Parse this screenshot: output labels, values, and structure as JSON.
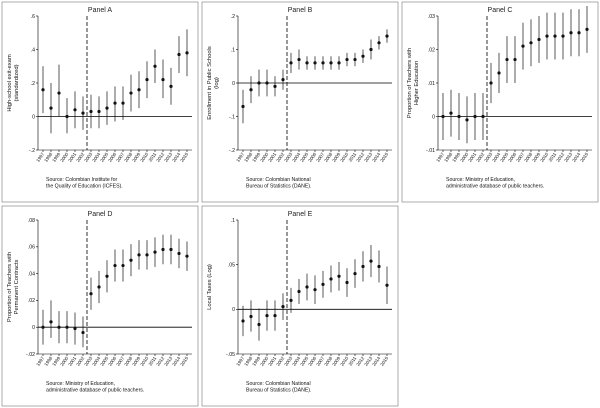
{
  "chart_data": [
    {
      "type": "scatter",
      "title": "Panel A",
      "ylabel": "High-school exit-exam (standardized)",
      "ylabel_lines": [
        "High-school exit-exam",
        "(standardized)"
      ],
      "ylim": [
        -0.2,
        0.6
      ],
      "yticks": [
        -0.2,
        0,
        0.2,
        0.4,
        0.6
      ],
      "ytick_labels": [
        "-.2",
        "0",
        ".2",
        ".4",
        ".6"
      ],
      "x": [
        1997,
        1998,
        1999,
        2000,
        2001,
        2002,
        2003,
        2004,
        2005,
        2006,
        2007,
        2008,
        2009,
        2010,
        2011,
        2012,
        2013,
        2014,
        2015
      ],
      "values": [
        0.16,
        0.05,
        0.14,
        0.0,
        0.04,
        0.02,
        0.03,
        0.03,
        0.05,
        0.08,
        0.08,
        0.14,
        0.16,
        0.22,
        0.3,
        0.22,
        0.18,
        0.37,
        0.38
      ],
      "ci_low": [
        0.02,
        -0.1,
        0.0,
        -0.1,
        -0.07,
        -0.08,
        -0.07,
        -0.07,
        -0.05,
        -0.03,
        -0.02,
        0.03,
        0.05,
        0.11,
        0.2,
        0.11,
        0.07,
        0.26,
        0.24
      ],
      "ci_high": [
        0.3,
        0.2,
        0.31,
        0.11,
        0.15,
        0.12,
        0.13,
        0.12,
        0.15,
        0.18,
        0.18,
        0.25,
        0.27,
        0.33,
        0.4,
        0.34,
        0.29,
        0.48,
        0.52
      ],
      "vline_x": 2002,
      "source_lines": [
        "Source: Colombian Institute for",
        "the Quality of Education (ICFES)."
      ]
    },
    {
      "type": "scatter",
      "title": "Panel B",
      "ylabel": "Enrollment in Public Schools (log)",
      "ylabel_lines": [
        "Enrollment in Public Schools",
        "(log)"
      ],
      "ylim": [
        -0.2,
        0.2
      ],
      "yticks": [
        -0.2,
        -0.1,
        0,
        0.1,
        0.2
      ],
      "ytick_labels": [
        "-.2",
        "-.1",
        "0",
        ".1",
        ".2"
      ],
      "x": [
        1997,
        1998,
        1999,
        2000,
        2001,
        2002,
        2003,
        2004,
        2005,
        2006,
        2007,
        2008,
        2009,
        2010,
        2011,
        2012,
        2013,
        2014,
        2015
      ],
      "values": [
        -0.07,
        -0.02,
        0.0,
        0.0,
        -0.01,
        0.01,
        0.06,
        0.07,
        0.06,
        0.06,
        0.06,
        0.06,
        0.06,
        0.07,
        0.07,
        0.08,
        0.1,
        0.12,
        0.14
      ],
      "ci_low": [
        -0.12,
        -0.06,
        -0.04,
        -0.04,
        -0.04,
        -0.02,
        0.03,
        0.04,
        0.04,
        0.04,
        0.04,
        0.04,
        0.04,
        0.05,
        0.05,
        0.06,
        0.07,
        0.1,
        0.12
      ],
      "ci_high": [
        -0.02,
        0.02,
        0.04,
        0.04,
        0.02,
        0.04,
        0.09,
        0.1,
        0.08,
        0.08,
        0.08,
        0.08,
        0.08,
        0.09,
        0.09,
        0.1,
        0.13,
        0.14,
        0.16
      ],
      "vline_x": 2002,
      "source_lines": [
        "Source: Colombian National",
        "Bureau of Statistics (DANE)."
      ]
    },
    {
      "type": "scatter",
      "title": "Panel C",
      "ylabel": "Proportion of Teachers with Higher Education",
      "ylabel_lines": [
        "Proportion of Teachers with",
        "Higher Education"
      ],
      "ylim": [
        -0.01,
        0.03
      ],
      "yticks": [
        -0.01,
        0,
        0.01,
        0.02,
        0.03
      ],
      "ytick_labels": [
        "-.01",
        "0",
        ".01",
        ".02",
        ".03"
      ],
      "x": [
        1997,
        1998,
        1999,
        2000,
        2001,
        2002,
        2003,
        2004,
        2005,
        2006,
        2007,
        2008,
        2009,
        2010,
        2011,
        2012,
        2013,
        2014,
        2015
      ],
      "values": [
        0.0,
        0.001,
        0.0,
        -0.001,
        0.0,
        0.0,
        0.01,
        0.013,
        0.017,
        0.017,
        0.021,
        0.022,
        0.023,
        0.024,
        0.024,
        0.024,
        0.025,
        0.025,
        0.026
      ],
      "ci_low": [
        -0.007,
        -0.006,
        -0.007,
        -0.008,
        -0.007,
        -0.007,
        0.004,
        0.007,
        0.01,
        0.01,
        0.014,
        0.015,
        0.016,
        0.017,
        0.017,
        0.017,
        0.018,
        0.018,
        0.019
      ],
      "ci_high": [
        0.007,
        0.008,
        0.007,
        0.006,
        0.007,
        0.007,
        0.016,
        0.019,
        0.024,
        0.024,
        0.028,
        0.029,
        0.03,
        0.031,
        0.031,
        0.031,
        0.032,
        0.032,
        0.033
      ],
      "vline_x": 2002,
      "source_lines": [
        "Source: Ministry of Education,",
        "administrative database of public teachers."
      ]
    },
    {
      "type": "scatter",
      "title": "Panel D",
      "ylabel": "Proportion of Teachers with Permanent Contracts",
      "ylabel_lines": [
        "Proportion of Teachers with",
        "Permanent Contracts"
      ],
      "ylim": [
        -0.02,
        0.08
      ],
      "yticks": [
        -0.02,
        0,
        0.02,
        0.04,
        0.06,
        0.08
      ],
      "ytick_labels": [
        "-.02",
        "0",
        ".02",
        ".04",
        ".06",
        ".08"
      ],
      "x": [
        1997,
        1998,
        1999,
        2000,
        2001,
        2002,
        2003,
        2004,
        2005,
        2006,
        2007,
        2008,
        2009,
        2010,
        2011,
        2012,
        2013,
        2014,
        2015
      ],
      "values": [
        0.0,
        0.004,
        0.0,
        0.0,
        -0.001,
        -0.004,
        0.025,
        0.03,
        0.038,
        0.046,
        0.046,
        0.05,
        0.054,
        0.054,
        0.056,
        0.058,
        0.058,
        0.055,
        0.053
      ],
      "ci_low": [
        -0.013,
        -0.008,
        -0.012,
        -0.012,
        -0.013,
        -0.015,
        0.013,
        0.018,
        0.026,
        0.034,
        0.034,
        0.038,
        0.043,
        0.043,
        0.045,
        0.047,
        0.047,
        0.044,
        0.042
      ],
      "ci_high": [
        0.013,
        0.02,
        0.012,
        0.012,
        0.011,
        0.008,
        0.037,
        0.042,
        0.05,
        0.058,
        0.058,
        0.062,
        0.065,
        0.065,
        0.067,
        0.069,
        0.069,
        0.066,
        0.064
      ],
      "vline_x": 2002,
      "source_lines": [
        "Source: Ministry of Education,",
        "administrative database of public teachers."
      ]
    },
    {
      "type": "scatter",
      "title": "Panel E",
      "ylabel": "Local Taxes (Log)",
      "ylabel_lines": [
        "Local Taxes (Log)"
      ],
      "ylim": [
        -0.05,
        0.1
      ],
      "yticks": [
        -0.05,
        0,
        0.05,
        0.1
      ],
      "ytick_labels": [
        "-.05",
        "0",
        ".05",
        ".1"
      ],
      "x": [
        1997,
        1998,
        1999,
        2000,
        2001,
        2002,
        2003,
        2004,
        2005,
        2006,
        2007,
        2008,
        2009,
        2010,
        2011,
        2012,
        2013,
        2014,
        2015
      ],
      "values": [
        -0.013,
        -0.008,
        -0.017,
        -0.007,
        -0.007,
        0.003,
        0.01,
        0.02,
        0.025,
        0.022,
        0.028,
        0.034,
        0.037,
        0.03,
        0.04,
        0.048,
        0.054,
        0.048,
        0.027
      ],
      "ci_low": [
        -0.03,
        -0.025,
        -0.035,
        -0.024,
        -0.024,
        -0.012,
        -0.004,
        0.006,
        0.01,
        0.006,
        0.013,
        0.019,
        0.021,
        0.014,
        0.024,
        0.031,
        0.036,
        0.03,
        0.006
      ],
      "ci_high": [
        0.004,
        0.01,
        0.001,
        0.01,
        0.01,
        0.018,
        0.024,
        0.034,
        0.04,
        0.038,
        0.043,
        0.049,
        0.053,
        0.046,
        0.056,
        0.065,
        0.072,
        0.066,
        0.048
      ],
      "vline_x": 2002,
      "source_lines": [
        "Source: Colombian National",
        "Bureau of Statistics (DANE)."
      ]
    }
  ]
}
